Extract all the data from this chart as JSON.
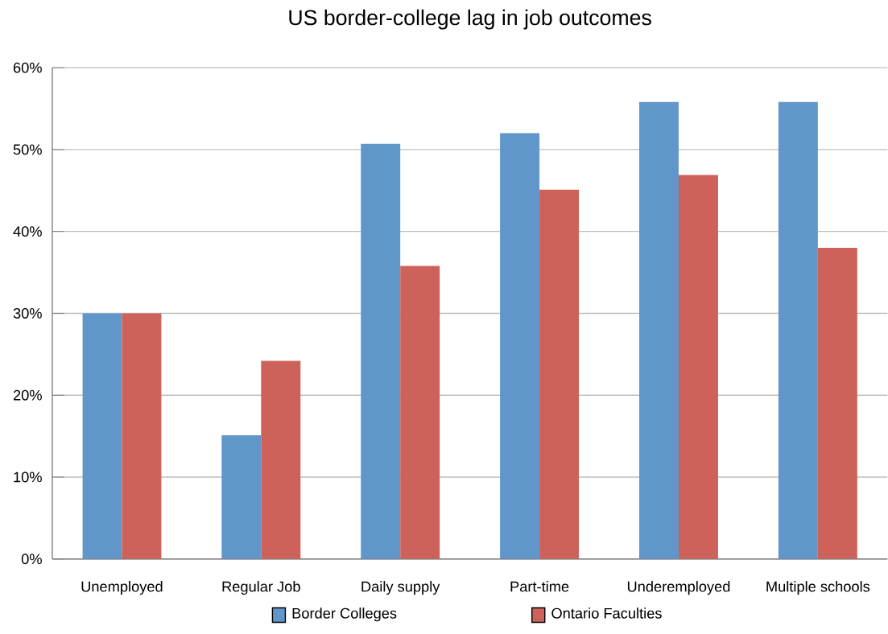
{
  "chart_data": {
    "type": "bar",
    "title": "US border-college lag in job outcomes",
    "categories": [
      "Unemployed",
      "Regular Job",
      "Daily supply",
      "Part-time",
      "Underemployed",
      "Multiple schools"
    ],
    "series": [
      {
        "name": "Border Colleges",
        "color": "#6096c9",
        "values": [
          30,
          15.1,
          50.7,
          52,
          55.8,
          55.8
        ]
      },
      {
        "name": "Ontario Faculties",
        "color": "#cc625a",
        "values": [
          30,
          24.2,
          35.8,
          45.1,
          46.9,
          38
        ]
      }
    ],
    "ylim": [
      0,
      60
    ],
    "yticks": [
      {
        "value": 0,
        "label": "0%"
      },
      {
        "value": 10,
        "label": "10%"
      },
      {
        "value": 20,
        "label": "20%"
      },
      {
        "value": 30,
        "label": "30%"
      },
      {
        "value": 40,
        "label": "40%"
      },
      {
        "value": 50,
        "label": "50%"
      },
      {
        "value": 60,
        "label": "60%"
      }
    ],
    "grid": "y",
    "legend": "bottom"
  }
}
